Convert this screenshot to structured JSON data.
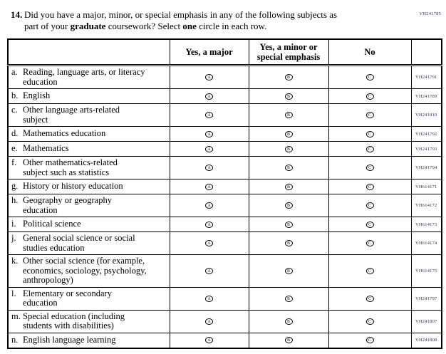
{
  "page": {
    "form_code": "VH241785"
  },
  "question": {
    "number": "14.",
    "full_text": "Did you have a major, minor, or special emphasis in any of the following subjects as part of your graduate coursework? Select one circle in each row.",
    "lines": [
      [
        {
          "t": "Did you have a major, minor, or special emphasis in any of the following subjects as",
          "b": false
        }
      ],
      [
        {
          "t": "part of your ",
          "b": false
        },
        {
          "t": "graduate",
          "b": true
        },
        {
          "t": " coursework? Select ",
          "b": false
        },
        {
          "t": "one",
          "b": true
        },
        {
          "t": " circle in each row.",
          "b": false
        }
      ]
    ]
  },
  "table": {
    "headers": [
      "",
      "Yes, a major",
      "Yes, a minor or special emphasis",
      "No",
      ""
    ],
    "bubbles": [
      {
        "letter": "A",
        "column": "Yes, a major"
      },
      {
        "letter": "B",
        "column": "Yes, a minor or special emphasis"
      },
      {
        "letter": "C",
        "column": "No"
      }
    ],
    "rows": [
      {
        "letter": "a.",
        "label": "Reading, language arts, or literacy\neducation",
        "code": "VH241791"
      },
      {
        "letter": "b.",
        "label": "English",
        "code": "VH241789"
      },
      {
        "letter": "c.",
        "label": "Other language arts-related\nsubject",
        "code": "VH241810"
      },
      {
        "letter": "d.",
        "label": "Mathematics education",
        "code": "VH241792"
      },
      {
        "letter": "e.",
        "label": "Mathematics",
        "code": "VH241793"
      },
      {
        "letter": "f.",
        "label": "Other mathematics-related\nsubject such as statistics",
        "code": "VH241794"
      },
      {
        "letter": "g.",
        "label": "History or history education",
        "code": "VH614171"
      },
      {
        "letter": "h.",
        "label": "Geography or geography\neducation",
        "code": "VH614172"
      },
      {
        "letter": "i.",
        "label": "Political science",
        "code": "VH614173"
      },
      {
        "letter": "j.",
        "label": "General social science or social\nstudies education",
        "code": "VH614174"
      },
      {
        "letter": "k.",
        "label": "Other social science (for example,\neconomics, sociology, psychology,\nanthropology)",
        "code": "VH614175"
      },
      {
        "letter": "l.",
        "label": "Elementary or secondary\neducation",
        "code": "VH241797"
      },
      {
        "letter": "m.",
        "label": "Special education (including\nstudents with disabilities)",
        "code": "VH241807"
      },
      {
        "letter": "n.",
        "label": "English language learning",
        "code": "VH241808"
      }
    ]
  },
  "colors": {
    "code_text": "#2d2d6e",
    "border": "#000000",
    "text": "#000000",
    "background": "#ffffff"
  }
}
